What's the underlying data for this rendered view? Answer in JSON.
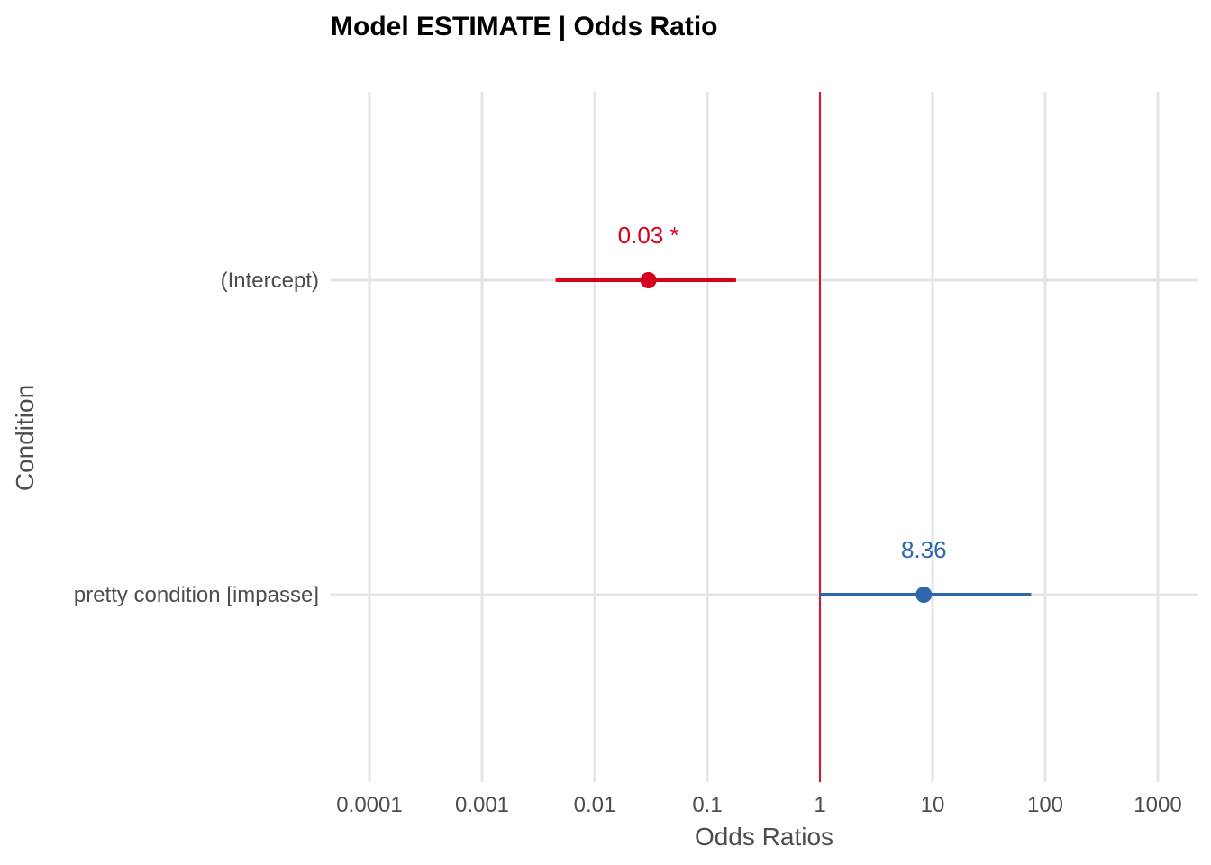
{
  "chart_data": {
    "type": "forest",
    "title": "Model ESTIMATE | Odds Ratio",
    "xlabel": "Odds Ratios",
    "ylabel": "Condition",
    "x_scale": "log10",
    "xlim": [
      0.0001,
      1000
    ],
    "x_ticks": [
      0.0001,
      0.001,
      0.01,
      0.1,
      1,
      10,
      100,
      1000
    ],
    "x_tick_labels": [
      "0.0001",
      "0.001",
      "0.01",
      "0.1",
      "1",
      "10",
      "100",
      "1000"
    ],
    "reference_line": 1,
    "reference_color": "#d7001f",
    "grid": true,
    "terms": [
      {
        "label": "(Intercept)",
        "estimate": 0.03,
        "ci_low": 0.0045,
        "ci_high": 0.18,
        "annotation": "0.03 *",
        "color": "#d7001f"
      },
      {
        "label": "pretty condition [impasse]",
        "estimate": 8.36,
        "ci_low": 1.0,
        "ci_high": 75,
        "annotation": "8.36",
        "color": "#2f67ad"
      }
    ]
  }
}
